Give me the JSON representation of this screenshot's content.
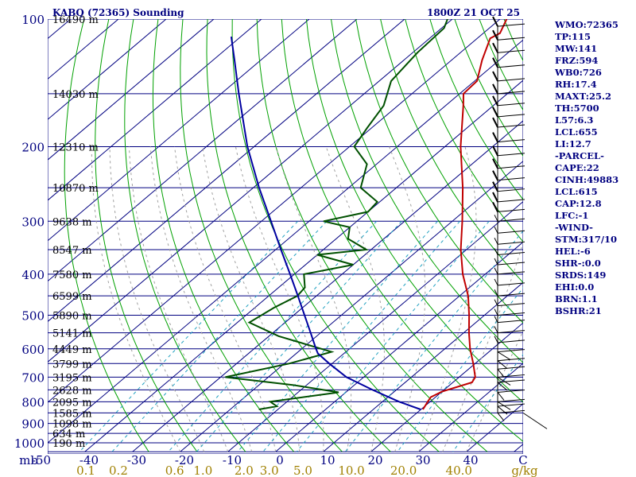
{
  "header": {
    "station": "KABQ (72365) Sounding",
    "time": "1800Z 21 OCT 25"
  },
  "colors": {
    "isobar": "#000080",
    "isotherm": "#000080",
    "dry_adiabat": "#00a000",
    "moist_adiabat": "#a0a0a0",
    "mixing_ratio": "#20a0c0",
    "temperature": "#c00000",
    "dewpoint": "#005000",
    "parcel": "#0000a0",
    "temp_labels": "#000080",
    "mixing_labels": "#a08000",
    "height_labels": "#000000",
    "wind_barbs": "#000000"
  },
  "indices": [
    "WMO:72365",
    "TP:115",
    "MW:141",
    "FRZ:594",
    "WB0:726",
    "RH:17.4",
    "MAXT:25.2",
    "TH:5700",
    "L57:6.3",
    "LCL:655",
    "LI:12.7",
    "-PARCEL-",
    "CAPE:22",
    "CINH:49883",
    "LCL:615",
    "CAP:12.8",
    "LFC:-1",
    "-WIND-",
    "STM:317/10",
    "HEL:-6",
    "SHR-:0.0",
    "SRDS:149",
    "EHI:0.0",
    "BRN:1.1",
    "BSHR:21"
  ],
  "chart_data": {
    "type": "skew-t",
    "x_axis": {
      "label": "C",
      "range": [
        -50,
        50
      ],
      "ticks": [
        -50,
        -40,
        -30,
        -20,
        -10,
        0,
        10,
        20,
        30,
        40
      ]
    },
    "y_axis": {
      "label": "mb",
      "scale": "log",
      "range": [
        100,
        1050
      ],
      "ticks": [
        100,
        200,
        300,
        400,
        500,
        600,
        700,
        800,
        900,
        1000
      ]
    },
    "height_labels": [
      {
        "p": 100,
        "text": "16490 m"
      },
      {
        "p": 150,
        "text": "14030 m"
      },
      {
        "p": 200,
        "text": "12310 m"
      },
      {
        "p": 250,
        "text": "10870 m"
      },
      {
        "p": 300,
        "text": "9638 m"
      },
      {
        "p": 350,
        "text": "8547 m"
      },
      {
        "p": 400,
        "text": "7580 m"
      },
      {
        "p": 450,
        "text": "6599 m"
      },
      {
        "p": 500,
        "text": "5890 m"
      },
      {
        "p": 550,
        "text": "5141 m"
      },
      {
        "p": 600,
        "text": "4449 m"
      },
      {
        "p": 650,
        "text": "3799 m"
      },
      {
        "p": 700,
        "text": "3195 m"
      },
      {
        "p": 750,
        "text": "2628 m"
      },
      {
        "p": 800,
        "text": "2095 m"
      },
      {
        "p": 850,
        "text": "1585 m"
      },
      {
        "p": 900,
        "text": "1098 m"
      },
      {
        "p": 950,
        "text": "634 m"
      },
      {
        "p": 1000,
        "text": "190 m"
      }
    ],
    "mixing_ratio_labels": [
      "0.1",
      "0.2",
      "0.6",
      "1.0",
      "2.0",
      "3.0",
      "5.0",
      "10.0",
      "20.0",
      "40.0",
      "g/kg"
    ],
    "mixing_ratio_values": [
      0.1,
      0.2,
      0.6,
      1.0,
      2.0,
      3.0,
      5.0,
      10.0,
      20.0,
      40.0
    ],
    "series": [
      {
        "role": "temperature",
        "points": [
          {
            "p": 834,
            "t": 20.4
          },
          {
            "p": 800,
            "t": 19.5
          },
          {
            "p": 780,
            "t": 19.0
          },
          {
            "p": 757,
            "t": 20.0
          },
          {
            "p": 720,
            "t": 24.0
          },
          {
            "p": 700,
            "t": 23.4
          },
          {
            "p": 650,
            "t": 19.6
          },
          {
            "p": 600,
            "t": 15.3
          },
          {
            "p": 550,
            "t": 11.1
          },
          {
            "p": 500,
            "t": 6.8
          },
          {
            "p": 450,
            "t": 1.8
          },
          {
            "p": 400,
            "t": -4.7
          },
          {
            "p": 350,
            "t": -11.2
          },
          {
            "p": 300,
            "t": -17.9
          },
          {
            "p": 250,
            "t": -26.1
          },
          {
            "p": 200,
            "t": -36.7
          },
          {
            "p": 160,
            "t": -46.3
          },
          {
            "p": 150,
            "t": -49.2
          },
          {
            "p": 140,
            "t": -49.5
          },
          {
            "p": 125,
            "t": -53.6
          },
          {
            "p": 111,
            "t": -57.3
          },
          {
            "p": 108,
            "t": -56.5
          },
          {
            "p": 100,
            "t": -58.6
          }
        ]
      },
      {
        "role": "dewpoint",
        "points": [
          {
            "p": 834,
            "t": -14.0
          },
          {
            "p": 820,
            "t": -11.0
          },
          {
            "p": 800,
            "t": -13.5
          },
          {
            "p": 760,
            "t": -1.5
          },
          {
            "p": 730,
            "t": -13.0
          },
          {
            "p": 700,
            "t": -29.0
          },
          {
            "p": 650,
            "t": -19.0
          },
          {
            "p": 610,
            "t": -13.0
          },
          {
            "p": 560,
            "t": -28.0
          },
          {
            "p": 520,
            "t": -37.5
          },
          {
            "p": 480,
            "t": -36.0
          },
          {
            "p": 450,
            "t": -34.0
          },
          {
            "p": 430,
            "t": -34.5
          },
          {
            "p": 400,
            "t": -38.0
          },
          {
            "p": 380,
            "t": -30.0
          },
          {
            "p": 360,
            "t": -40.0
          },
          {
            "p": 350,
            "t": -31.0
          },
          {
            "p": 330,
            "t": -37.5
          },
          {
            "p": 310,
            "t": -40.0
          },
          {
            "p": 300,
            "t": -47.0
          },
          {
            "p": 285,
            "t": -40.0
          },
          {
            "p": 270,
            "t": -40.5
          },
          {
            "p": 250,
            "t": -47.5
          },
          {
            "p": 220,
            "t": -52.0
          },
          {
            "p": 200,
            "t": -59.0
          },
          {
            "p": 180,
            "t": -61.0
          },
          {
            "p": 160,
            "t": -63.0
          },
          {
            "p": 140,
            "t": -67.5
          },
          {
            "p": 120,
            "t": -69.0
          },
          {
            "p": 105,
            "t": -69.5
          },
          {
            "p": 100,
            "t": -71.0
          }
        ]
      },
      {
        "role": "parcel",
        "points": [
          {
            "p": 834,
            "t": 19.9
          },
          {
            "p": 800,
            "t": 13.5
          },
          {
            "p": 750,
            "t": 5.0
          },
          {
            "p": 700,
            "t": -3.6
          },
          {
            "p": 650,
            "t": -10.6
          },
          {
            "p": 615,
            "t": -15.5
          },
          {
            "p": 600,
            "t": -17.0
          },
          {
            "p": 550,
            "t": -22.1
          },
          {
            "p": 500,
            "t": -27.7
          },
          {
            "p": 450,
            "t": -33.9
          },
          {
            "p": 400,
            "t": -40.9
          },
          {
            "p": 350,
            "t": -48.9
          },
          {
            "p": 300,
            "t": -58.0
          },
          {
            "p": 250,
            "t": -68.8
          },
          {
            "p": 200,
            "t": -81.4
          },
          {
            "p": 150,
            "t": -96.3
          },
          {
            "p": 125,
            "t": -105.5
          },
          {
            "p": 110,
            "t": -112.0
          }
        ]
      }
    ],
    "wind_barb_levels": [
      {
        "p": 850
      },
      {
        "p": 820
      },
      {
        "p": 800
      },
      {
        "p": 760
      },
      {
        "p": 720
      },
      {
        "p": 700
      },
      {
        "p": 670
      },
      {
        "p": 640
      },
      {
        "p": 610
      },
      {
        "p": 580
      },
      {
        "p": 550
      },
      {
        "p": 520
      },
      {
        "p": 500
      },
      {
        "p": 475
      },
      {
        "p": 450
      },
      {
        "p": 425
      },
      {
        "p": 400
      },
      {
        "p": 380
      },
      {
        "p": 360
      },
      {
        "p": 340
      },
      {
        "p": 320
      },
      {
        "p": 300
      },
      {
        "p": 285
      },
      {
        "p": 270
      },
      {
        "p": 255
      },
      {
        "p": 240
      },
      {
        "p": 225
      },
      {
        "p": 210
      },
      {
        "p": 195
      },
      {
        "p": 180
      },
      {
        "p": 170
      },
      {
        "p": 160
      },
      {
        "p": 150
      },
      {
        "p": 140
      },
      {
        "p": 130
      },
      {
        "p": 120
      },
      {
        "p": 112
      },
      {
        "p": 104
      }
    ],
    "grid": true
  }
}
